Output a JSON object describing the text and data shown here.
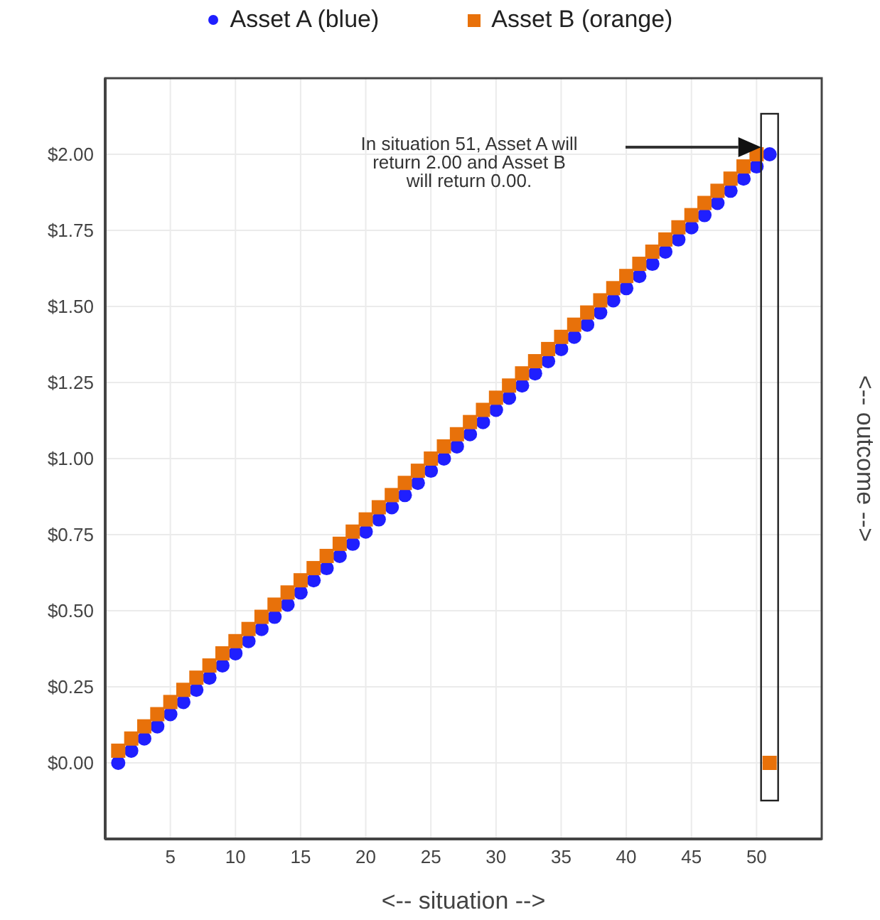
{
  "chart_data": {
    "type": "scatter",
    "xlabel": "<-- situation -->",
    "ylabel": "<-- outcome -->",
    "x": [
      1,
      2,
      3,
      4,
      5,
      6,
      7,
      8,
      9,
      10,
      11,
      12,
      13,
      14,
      15,
      16,
      17,
      18,
      19,
      20,
      21,
      22,
      23,
      24,
      25,
      26,
      27,
      28,
      29,
      30,
      31,
      32,
      33,
      34,
      35,
      36,
      37,
      38,
      39,
      40,
      41,
      42,
      43,
      44,
      45,
      46,
      47,
      48,
      49,
      50,
      51
    ],
    "series": [
      {
        "name": "Asset A (blue)",
        "color": "#1f1fff",
        "marker": "circle",
        "values": [
          0,
          0.04,
          0.08,
          0.12,
          0.16,
          0.2,
          0.24,
          0.28,
          0.32,
          0.36,
          0.4,
          0.44,
          0.48,
          0.52,
          0.56,
          0.6,
          0.64,
          0.68,
          0.72,
          0.76,
          0.8,
          0.84,
          0.88,
          0.92,
          0.96,
          1,
          1.04,
          1.08,
          1.12,
          1.16,
          1.2,
          1.24,
          1.28,
          1.32,
          1.36,
          1.4,
          1.44,
          1.48,
          1.52,
          1.56,
          1.6,
          1.64,
          1.68,
          1.72,
          1.76,
          1.8,
          1.84,
          1.88,
          1.92,
          1.96,
          2
        ]
      },
      {
        "name": "Asset B (orange)",
        "color": "#e8710a",
        "marker": "square",
        "values": [
          0.04,
          0.08,
          0.12,
          0.16,
          0.2,
          0.24,
          0.28,
          0.32,
          0.36,
          0.4,
          0.44,
          0.48,
          0.52,
          0.56,
          0.6,
          0.64,
          0.68,
          0.72,
          0.76,
          0.8,
          0.84,
          0.88,
          0.92,
          0.96,
          1,
          1.04,
          1.08,
          1.12,
          1.16,
          1.2,
          1.24,
          1.28,
          1.32,
          1.36,
          1.4,
          1.44,
          1.48,
          1.52,
          1.56,
          1.6,
          1.64,
          1.68,
          1.72,
          1.76,
          1.8,
          1.84,
          1.88,
          1.92,
          1.96,
          2,
          0
        ]
      }
    ],
    "xlim": [
      0,
      55
    ],
    "xticks": [
      5,
      10,
      15,
      20,
      25,
      30,
      35,
      40,
      45,
      50
    ],
    "ylim": [
      -0.25,
      2.25
    ],
    "yticks": [
      {
        "value": 0,
        "label": "$0.00"
      },
      {
        "value": 0.25,
        "label": "$0.25"
      },
      {
        "value": 0.5,
        "label": "$0.50"
      },
      {
        "value": 0.75,
        "label": "$0.75"
      },
      {
        "value": 1,
        "label": "$1.00"
      },
      {
        "value": 1.25,
        "label": "$1.25"
      },
      {
        "value": 1.5,
        "label": "$1.50"
      },
      {
        "value": 1.75,
        "label": "$1.75"
      },
      {
        "value": 2,
        "label": "$2.00"
      }
    ],
    "annotations": [
      "In situation 51, Asset A will return 2.00 and Asset B will return 0.00."
    ],
    "grid": true,
    "legend": "top"
  }
}
